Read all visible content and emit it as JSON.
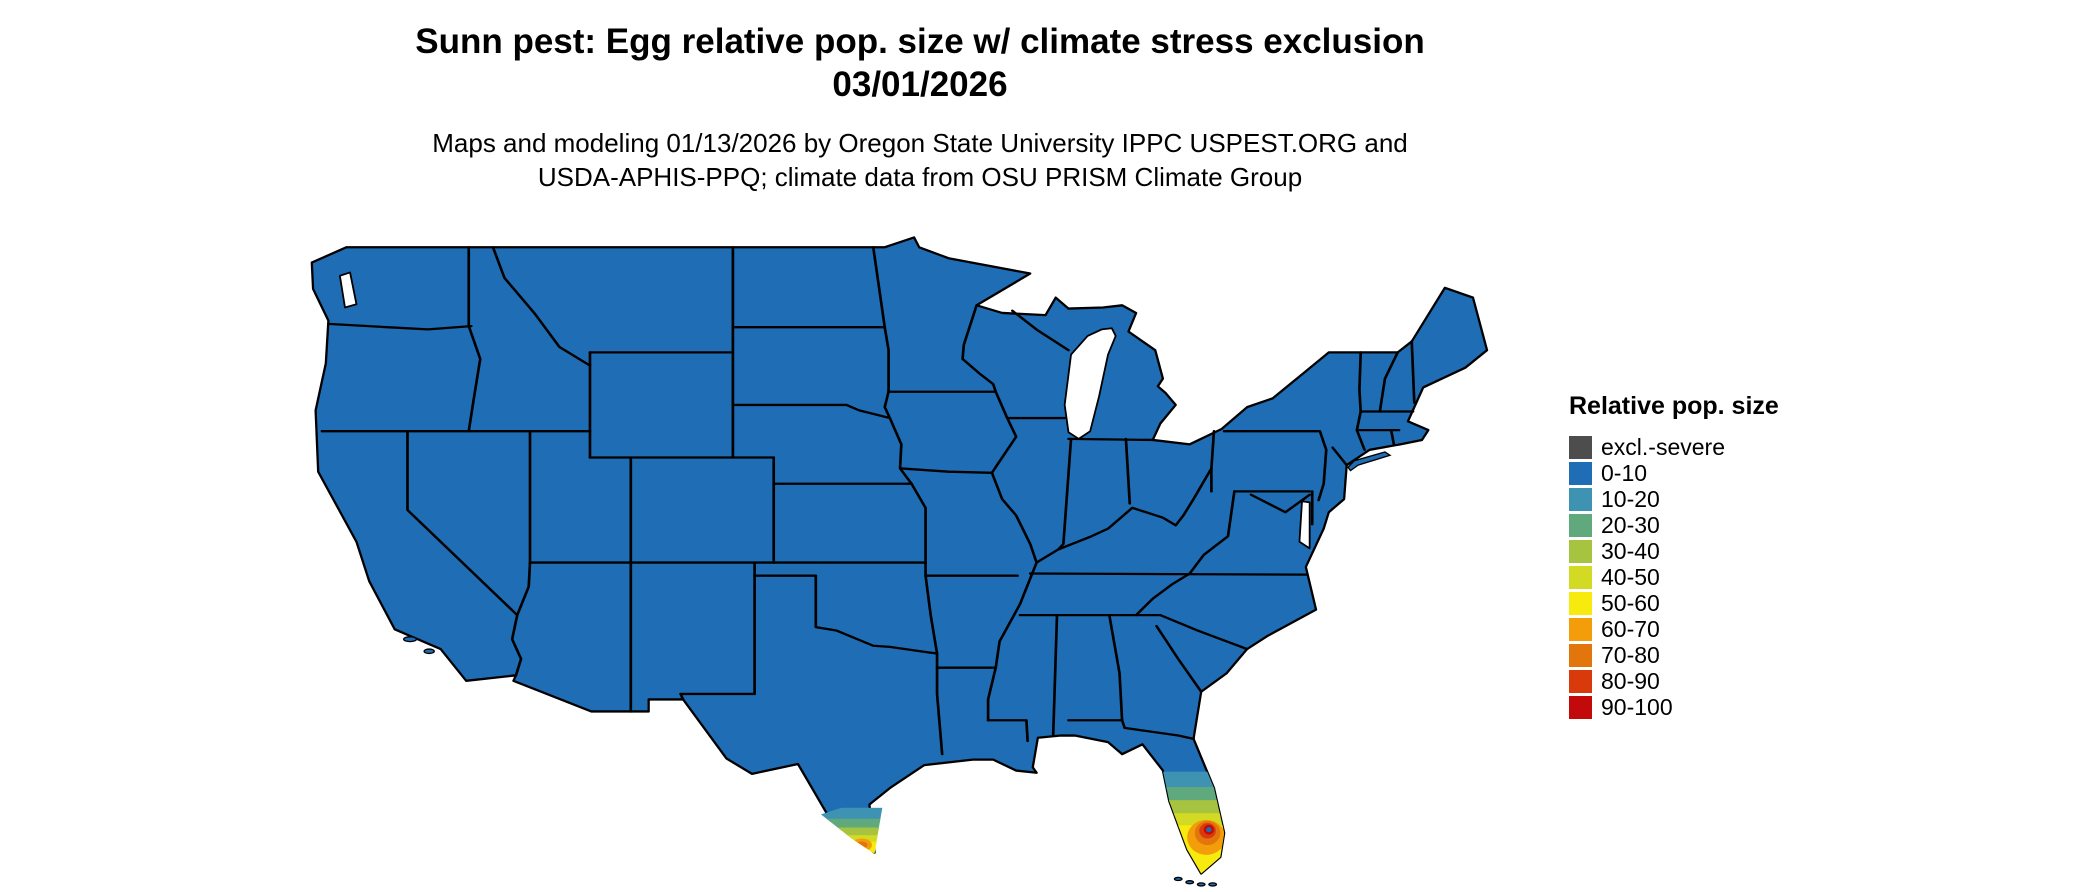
{
  "header": {
    "title_line1": "Sunn pest: Egg relative pop. size w/ climate stress exclusion",
    "title_line2": "03/01/2026",
    "subtitle_line1": "Maps and modeling 01/13/2026 by Oregon State University IPPC USPEST.ORG and",
    "subtitle_line2": "USDA-APHIS-PPQ; climate data from OSU PRISM Climate Group"
  },
  "legend": {
    "title": "Relative pop. size",
    "items": [
      {
        "label": "excl.-severe",
        "color": "#4D4D4D"
      },
      {
        "label": "0-10",
        "color": "#1F6EB5"
      },
      {
        "label": "10-20",
        "color": "#3F93B2"
      },
      {
        "label": "20-30",
        "color": "#5FA97C"
      },
      {
        "label": "30-40",
        "color": "#A6C43F"
      },
      {
        "label": "40-50",
        "color": "#D3DA24"
      },
      {
        "label": "50-60",
        "color": "#F6EA0E"
      },
      {
        "label": "60-70",
        "color": "#F29D09"
      },
      {
        "label": "70-80",
        "color": "#E2750B"
      },
      {
        "label": "80-90",
        "color": "#D93A0B"
      },
      {
        "label": "90-100",
        "color": "#C20A0A"
      }
    ]
  },
  "map": {
    "region": "Continental United States",
    "base_category": "0-10",
    "base_color": "#1F6EB5",
    "boundary_color": "#000000",
    "background_color": "#FFFFFF",
    "hotspots": [
      {
        "region": "South Florida peninsula",
        "categories": [
          "10-20",
          "20-30",
          "30-40",
          "40-50",
          "50-60",
          "60-70",
          "70-80",
          "80-90",
          "90-100"
        ],
        "peak_category": "90-100"
      },
      {
        "region": "South Texas (Rio Grande Valley)",
        "categories": [
          "10-20",
          "20-30",
          "30-40",
          "40-50",
          "50-60",
          "60-70",
          "70-80"
        ],
        "peak_category": "70-80"
      }
    ]
  }
}
